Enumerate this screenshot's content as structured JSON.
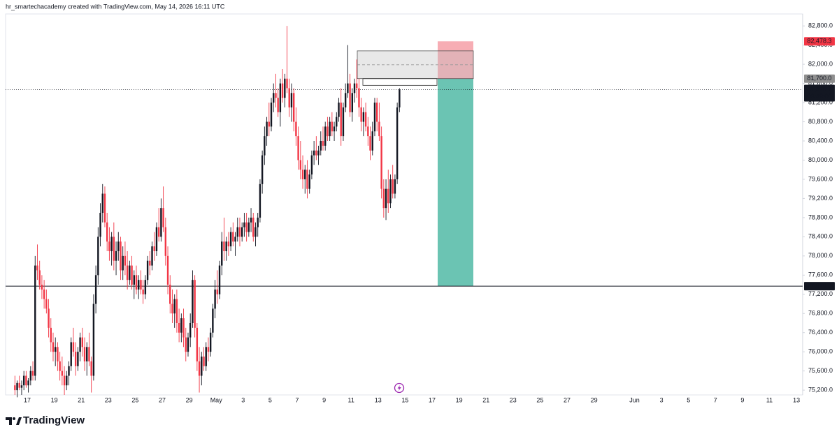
{
  "header": "hr_smartechacademy created with TradingView.com, May 14, 2026 16:11 UTC",
  "footer": {
    "brand": "TradingView"
  },
  "chart_data": {
    "type": "candlestick",
    "up_color": "#131722",
    "down_color": "#f23645",
    "categories": [
      null,
      "17",
      null,
      "19",
      null,
      "21",
      null,
      "23",
      null,
      "25",
      null,
      "27",
      null,
      "29",
      null,
      "May",
      null,
      "3",
      null,
      "5",
      null,
      "7",
      null,
      "9",
      null,
      "11",
      null,
      "13",
      null,
      "15",
      null,
      "17",
      null,
      "19",
      null,
      "21",
      null,
      "23",
      null,
      "25",
      null,
      "27",
      null,
      "29",
      null,
      null,
      "Jun",
      null,
      "3",
      null,
      "5",
      null,
      "7",
      null,
      "9",
      null,
      "11",
      null,
      "13"
    ],
    "ylim": [
      75100,
      83050
    ],
    "yticks": [
      {
        "value": 75200,
        "label": "75,200.0"
      },
      {
        "value": 75600,
        "label": "75,600.0"
      },
      {
        "value": 76000,
        "label": "76,000.0"
      },
      {
        "value": 76400,
        "label": "76,400.0"
      },
      {
        "value": 76800,
        "label": "76,800.0"
      },
      {
        "value": 77200,
        "label": "77,200.0"
      },
      {
        "value": 77600,
        "label": "77,600.0"
      },
      {
        "value": 78000,
        "label": "78,000.0"
      },
      {
        "value": 78400,
        "label": "78,400.0"
      },
      {
        "value": 78800,
        "label": "78,800.0"
      },
      {
        "value": 79200,
        "label": "79,200.0"
      },
      {
        "value": 79600,
        "label": "79,600.0"
      },
      {
        "value": 80000,
        "label": "80,000.0"
      },
      {
        "value": 80400,
        "label": "80,400.0"
      },
      {
        "value": 80800,
        "label": "80,800.0"
      },
      {
        "value": 81200,
        "label": "81,200.0"
      },
      {
        "value": 81600,
        "label": "81,600.0"
      },
      {
        "value": 82000,
        "label": "82,000.0"
      },
      {
        "value": 82400,
        "label": "82,400.0"
      },
      {
        "value": 82800,
        "label": "82,800.0"
      }
    ],
    "ohlc": [
      [
        75300,
        75500,
        75100,
        75200
      ],
      [
        75200,
        75400,
        75050,
        75350
      ],
      [
        75350,
        75500,
        75200,
        75250
      ],
      [
        75250,
        75400,
        75100,
        75300
      ],
      [
        75300,
        75600,
        75200,
        75500
      ],
      [
        75500,
        75600,
        75250,
        75300
      ],
      [
        75300,
        75450,
        75150,
        75400
      ],
      [
        75400,
        75700,
        75300,
        75600
      ],
      [
        75600,
        75800,
        75400,
        75500
      ],
      [
        75500,
        78000,
        75400,
        77800
      ],
      [
        77800,
        78240,
        77500,
        77700
      ],
      [
        77700,
        77900,
        77300,
        77400
      ],
      [
        77400,
        77600,
        77100,
        77300
      ],
      [
        77300,
        77500,
        76900,
        77100
      ],
      [
        77100,
        77300,
        76800,
        76900
      ],
      [
        76900,
        77100,
        76300,
        76500
      ],
      [
        76500,
        76700,
        76000,
        76200
      ],
      [
        76200,
        76400,
        75800,
        76000
      ],
      [
        76000,
        76300,
        75700,
        76100
      ],
      [
        76100,
        76200,
        75600,
        75800
      ],
      [
        75800,
        76000,
        75400,
        75600
      ],
      [
        75600,
        75900,
        75300,
        75500
      ],
      [
        75500,
        75700,
        75100,
        75300
      ],
      [
        75300,
        75600,
        75200,
        75500
      ],
      [
        75500,
        75800,
        75300,
        75700
      ],
      [
        75700,
        76300,
        75600,
        76200
      ],
      [
        76200,
        76500,
        75900,
        76000
      ],
      [
        76000,
        76200,
        75500,
        75700
      ],
      [
        75700,
        76100,
        75600,
        76000
      ],
      [
        76000,
        76400,
        75800,
        76300
      ],
      [
        76300,
        76500,
        75900,
        76100
      ],
      [
        76100,
        76300,
        75600,
        75800
      ],
      [
        75800,
        76200,
        75500,
        76100
      ],
      [
        76100,
        76400,
        75700,
        75800
      ],
      [
        75800,
        75900,
        75150,
        75500
      ],
      [
        75500,
        77200,
        75400,
        77000
      ],
      [
        77000,
        77800,
        76800,
        77600
      ],
      [
        77600,
        78600,
        77400,
        78400
      ],
      [
        78400,
        79100,
        78200,
        78900
      ],
      [
        78900,
        79500,
        78700,
        79300
      ],
      [
        79300,
        79450,
        78600,
        78700
      ],
      [
        78700,
        78900,
        78100,
        78300
      ],
      [
        78300,
        78600,
        77900,
        78100
      ],
      [
        78100,
        78500,
        77800,
        78400
      ],
      [
        78400,
        78700,
        77700,
        77900
      ],
      [
        77900,
        78300,
        77600,
        78100
      ],
      [
        78100,
        78500,
        77900,
        78300
      ],
      [
        78300,
        78400,
        77500,
        77700
      ],
      [
        77700,
        78200,
        77500,
        78000
      ],
      [
        78000,
        78300,
        77600,
        77800
      ],
      [
        77800,
        78100,
        77300,
        77500
      ],
      [
        77500,
        77900,
        77400,
        77800
      ],
      [
        77800,
        78000,
        77300,
        77400
      ],
      [
        77400,
        77700,
        77100,
        77600
      ],
      [
        77600,
        77800,
        77200,
        77300
      ],
      [
        77300,
        77600,
        77100,
        77500
      ],
      [
        77500,
        77700,
        77200,
        77300
      ],
      [
        77300,
        77500,
        77000,
        77200
      ],
      [
        77200,
        77600,
        77100,
        77500
      ],
      [
        77500,
        78000,
        77400,
        77900
      ],
      [
        77900,
        78100,
        77600,
        77800
      ],
      [
        77800,
        78300,
        77700,
        78200
      ],
      [
        78200,
        78500,
        77900,
        78100
      ],
      [
        78100,
        78700,
        78000,
        78600
      ],
      [
        78600,
        79000,
        78300,
        78400
      ],
      [
        78400,
        79200,
        78300,
        79000
      ],
      [
        79000,
        79450,
        78500,
        78600
      ],
      [
        78600,
        78800,
        77800,
        78000
      ],
      [
        78000,
        78200,
        77200,
        77400
      ],
      [
        77400,
        77600,
        76800,
        77000
      ],
      [
        77000,
        77300,
        76600,
        76800
      ],
      [
        76800,
        77200,
        76500,
        77100
      ],
      [
        77100,
        77300,
        76400,
        76600
      ],
      [
        76600,
        76900,
        76200,
        76400
      ],
      [
        76400,
        76800,
        76200,
        76700
      ],
      [
        76700,
        76900,
        76100,
        76300
      ],
      [
        76300,
        76500,
        75800,
        76000
      ],
      [
        76000,
        76400,
        75900,
        76300
      ],
      [
        76300,
        76800,
        76100,
        76600
      ],
      [
        76600,
        77700,
        76500,
        77500
      ],
      [
        77500,
        77600,
        76300,
        76500
      ],
      [
        76500,
        76600,
        75600,
        75800
      ],
      [
        75800,
        76100,
        75150,
        75500
      ],
      [
        75500,
        76000,
        75300,
        75900
      ],
      [
        75900,
        76100,
        75600,
        75700
      ],
      [
        75700,
        76200,
        75600,
        76100
      ],
      [
        76100,
        76300,
        75800,
        76000
      ],
      [
        76000,
        76500,
        75900,
        76400
      ],
      [
        76400,
        77000,
        76300,
        76900
      ],
      [
        76900,
        77500,
        76700,
        77300
      ],
      [
        77300,
        77700,
        77000,
        77200
      ],
      [
        77200,
        77900,
        77100,
        77800
      ],
      [
        77800,
        78500,
        77600,
        78300
      ],
      [
        78300,
        78800,
        77900,
        78100
      ],
      [
        78100,
        78400,
        77900,
        78300
      ],
      [
        78300,
        78500,
        78000,
        78200
      ],
      [
        78200,
        78600,
        78100,
        78500
      ],
      [
        78500,
        78700,
        78200,
        78300
      ],
      [
        78300,
        78500,
        78000,
        78400
      ],
      [
        78400,
        78800,
        78300,
        78600
      ],
      [
        78600,
        78800,
        78200,
        78400
      ],
      [
        78400,
        78700,
        78300,
        78600
      ],
      [
        78600,
        78900,
        78400,
        78700
      ],
      [
        78700,
        78900,
        78300,
        78500
      ],
      [
        78500,
        78800,
        78400,
        78700
      ],
      [
        78700,
        79000,
        78500,
        78800
      ],
      [
        78800,
        78900,
        78300,
        78400
      ],
      [
        78400,
        78700,
        78200,
        78600
      ],
      [
        78600,
        78900,
        78400,
        78800
      ],
      [
        78800,
        79600,
        78700,
        79500
      ],
      [
        79500,
        80200,
        79300,
        80100
      ],
      [
        80100,
        80700,
        79900,
        80500
      ],
      [
        80500,
        80900,
        80300,
        80800
      ],
      [
        80800,
        81200,
        80500,
        80700
      ],
      [
        80700,
        81300,
        80600,
        81200
      ],
      [
        81200,
        81600,
        81000,
        81400
      ],
      [
        81400,
        81800,
        81100,
        81300
      ],
      [
        81300,
        81500,
        80900,
        81000
      ],
      [
        81000,
        81700,
        80700,
        81600
      ],
      [
        81600,
        81900,
        81200,
        81300
      ],
      [
        81300,
        81800,
        81100,
        81700
      ],
      [
        81700,
        82800,
        81400,
        81500
      ],
      [
        81500,
        81700,
        80900,
        81100
      ],
      [
        81100,
        81600,
        80800,
        81400
      ],
      [
        81400,
        81500,
        80600,
        80800
      ],
      [
        80800,
        81100,
        80300,
        80500
      ],
      [
        80500,
        80700,
        79800,
        80000
      ],
      [
        80000,
        80400,
        79600,
        79800
      ],
      [
        79800,
        80100,
        79400,
        79600
      ],
      [
        79600,
        79900,
        79300,
        79800
      ],
      [
        79800,
        80000,
        79200,
        79400
      ],
      [
        79400,
        79800,
        79300,
        79700
      ],
      [
        79700,
        80200,
        79600,
        80100
      ],
      [
        80100,
        80400,
        79900,
        80200
      ],
      [
        80200,
        80500,
        80000,
        80100
      ],
      [
        80100,
        80300,
        79900,
        80200
      ],
      [
        80200,
        80600,
        80100,
        80400
      ],
      [
        80400,
        80700,
        80200,
        80300
      ],
      [
        80300,
        80800,
        80200,
        80700
      ],
      [
        80700,
        80900,
        80400,
        80500
      ],
      [
        80500,
        80900,
        80400,
        80800
      ],
      [
        80800,
        81000,
        80500,
        80600
      ],
      [
        80600,
        80800,
        80400,
        80700
      ],
      [
        80700,
        81000,
        80600,
        80900
      ],
      [
        80900,
        81300,
        80800,
        81200
      ],
      [
        81200,
        81500,
        80300,
        80500
      ],
      [
        80500,
        81200,
        80400,
        81100
      ],
      [
        81100,
        81600,
        81000,
        81400
      ],
      [
        81400,
        82400,
        81300,
        81600
      ],
      [
        81600,
        81800,
        80900,
        81000
      ],
      [
        81000,
        81500,
        80800,
        81400
      ],
      [
        81400,
        81700,
        81200,
        81600
      ],
      [
        81600,
        82100,
        81300,
        81500
      ],
      [
        81500,
        81700,
        80900,
        81100
      ],
      [
        81100,
        81300,
        80600,
        80800
      ],
      [
        80800,
        81100,
        80500,
        81000
      ],
      [
        81000,
        81200,
        80600,
        80700
      ],
      [
        80700,
        80900,
        80300,
        80500
      ],
      [
        80500,
        80700,
        80000,
        80200
      ],
      [
        80200,
        80800,
        80100,
        80600
      ],
      [
        80600,
        81300,
        80500,
        81200
      ],
      [
        81200,
        81300,
        80600,
        80800
      ],
      [
        80800,
        81200,
        80400,
        80500
      ],
      [
        80500,
        80700,
        79200,
        79400
      ],
      [
        79400,
        79600,
        78800,
        79000
      ],
      [
        79000,
        79600,
        78750,
        79400
      ],
      [
        79400,
        79800,
        78900,
        79100
      ],
      [
        79100,
        79700,
        79000,
        79600
      ],
      [
        79600,
        79900,
        79200,
        79300
      ],
      [
        79300,
        79700,
        79200,
        79600
      ],
      [
        79600,
        81200,
        79500,
        81100
      ],
      [
        81100,
        81500,
        81000,
        81470.2
      ]
    ],
    "last_price": {
      "value": 81470.2,
      "label": "81,470.2"
    },
    "countdown": "03:49:00",
    "zone": [
      81700,
      82280
    ],
    "zone_lower": [
      81560,
      81700
    ],
    "position": {
      "stop": {
        "value": 82478.3,
        "label": "82,478.3",
        "color": "#f7a9b0"
      },
      "entry": {
        "value": 81700,
        "label": "81,700.0"
      },
      "target": {
        "value": 77370,
        "label": "77,370.0",
        "color": "#6bc4b3"
      }
    }
  }
}
